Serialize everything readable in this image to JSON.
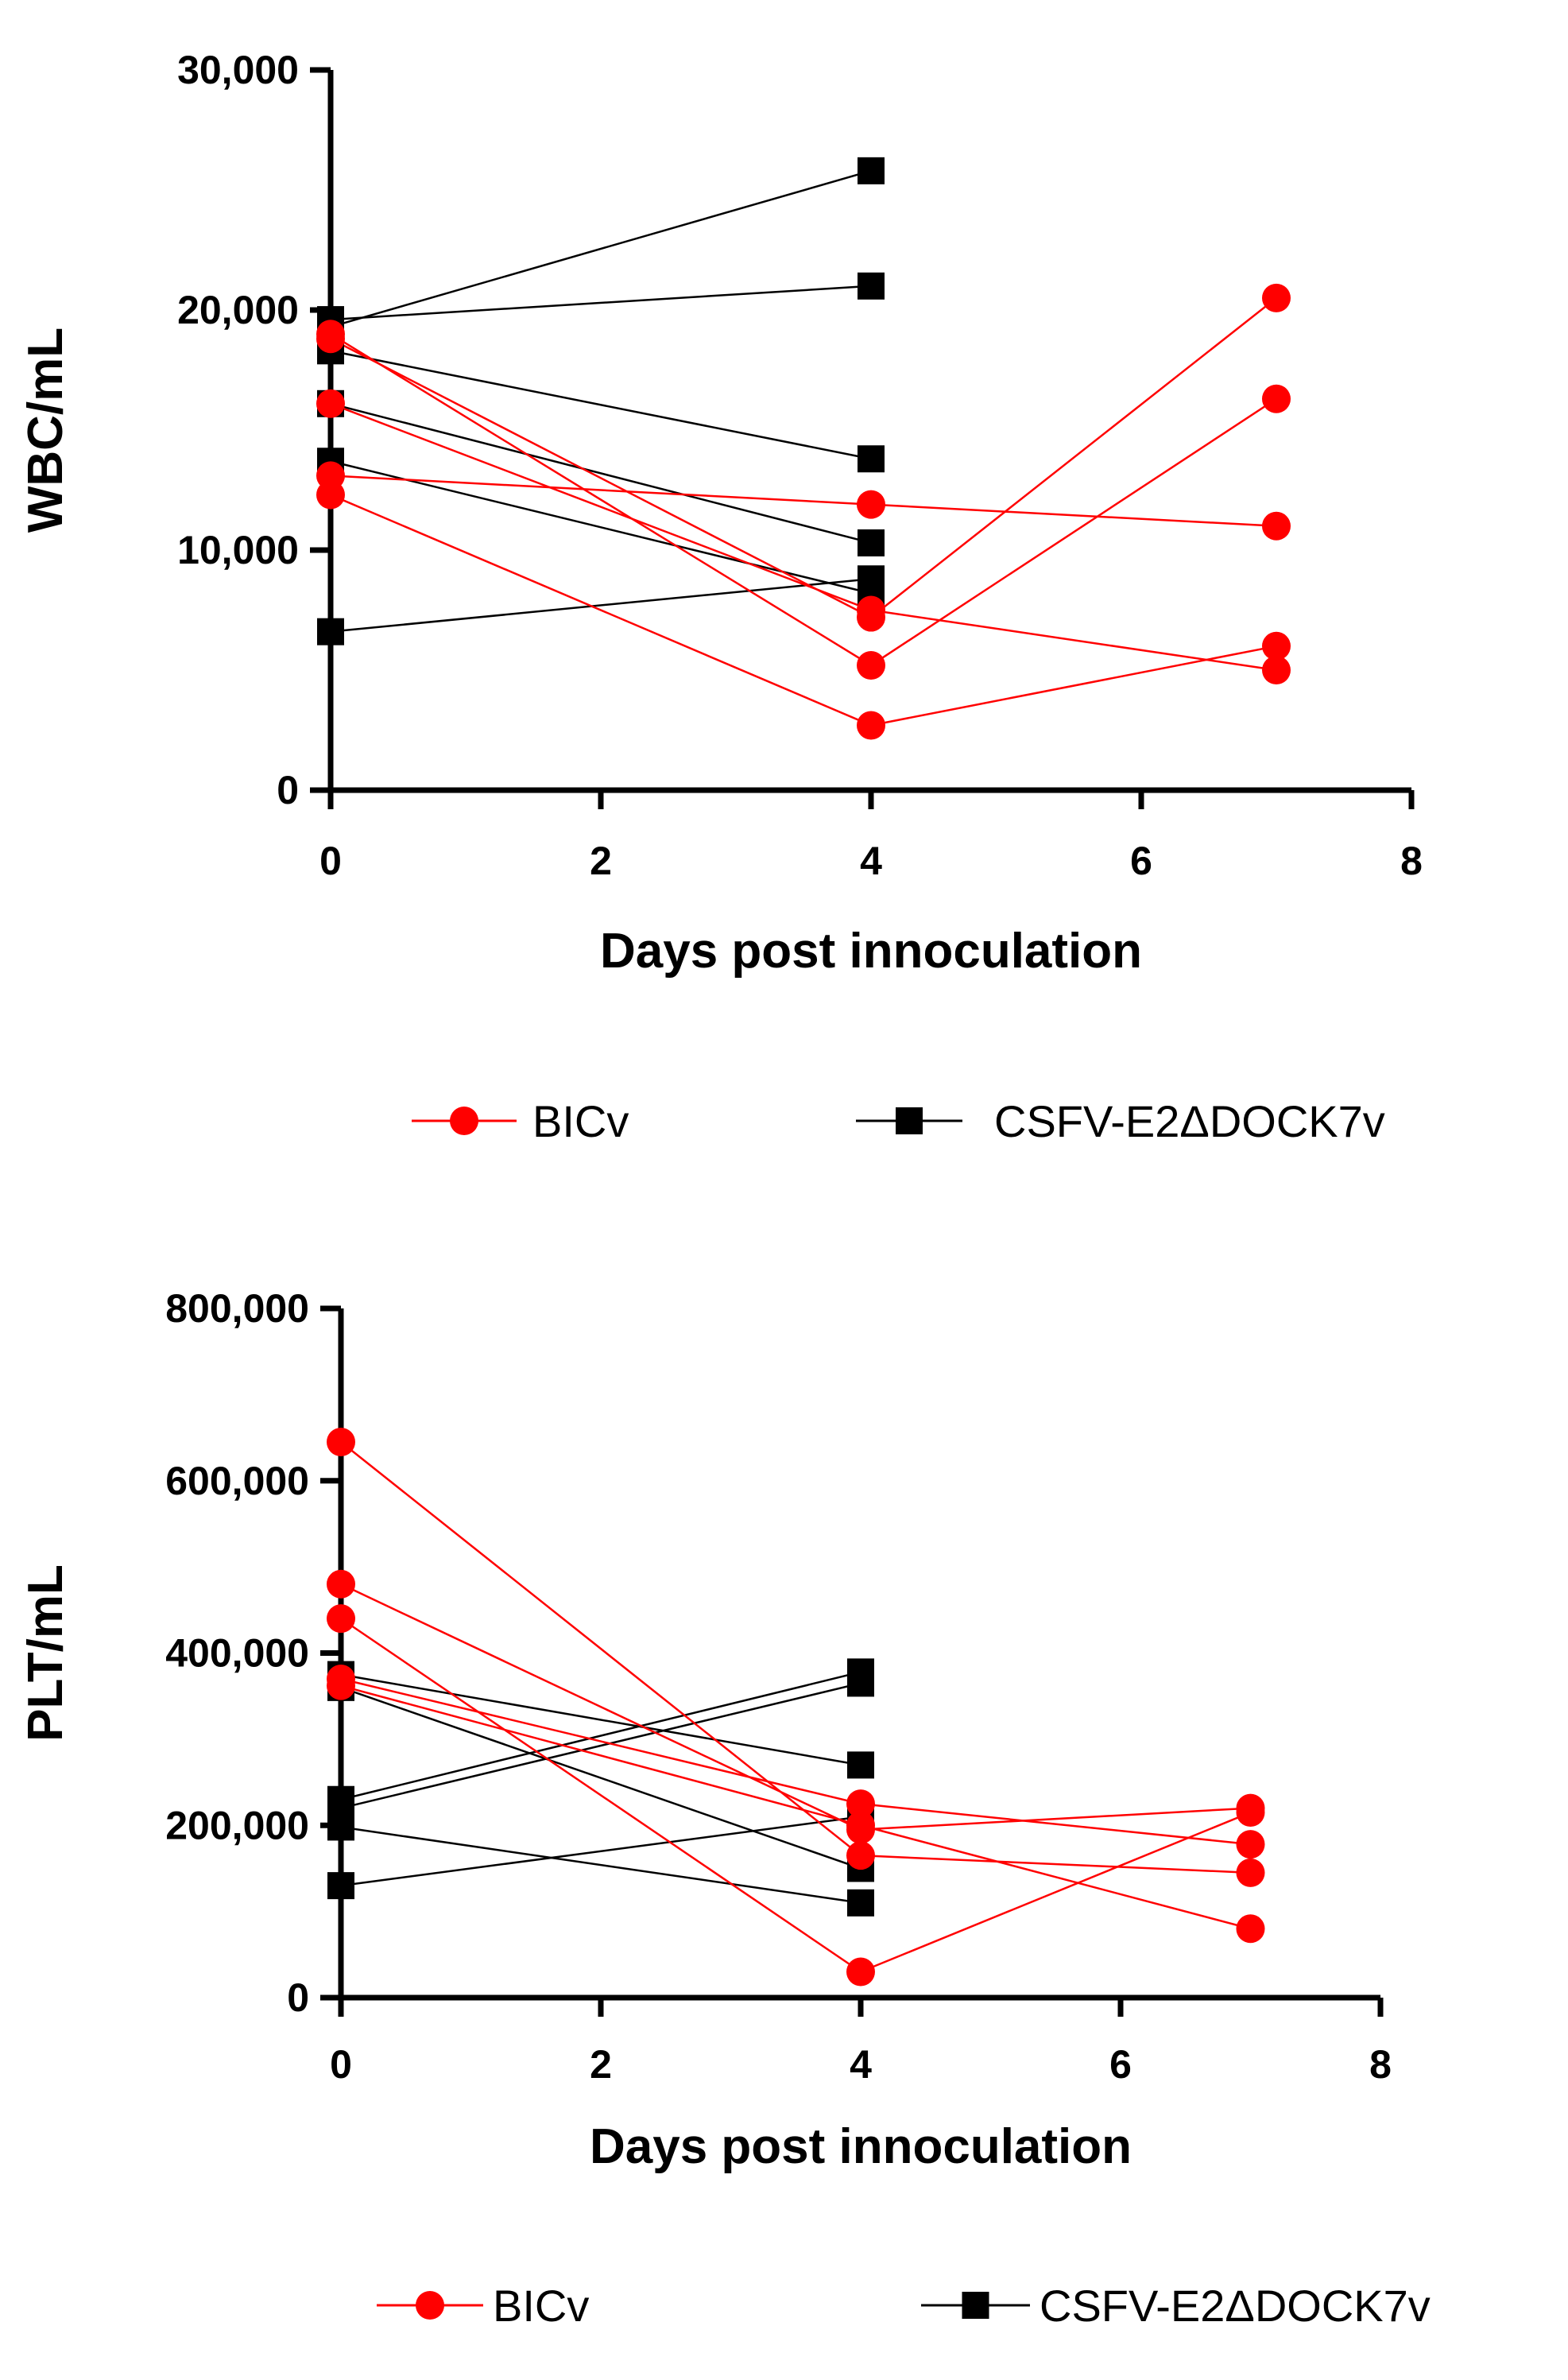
{
  "colors": {
    "bicv": "#ff0000",
    "csfv": "#000000"
  },
  "chart_data": [
    {
      "type": "line",
      "title": "",
      "xlabel": "Days post innoculation",
      "ylabel": "WBC/mL",
      "xlim": [
        0,
        8
      ],
      "ylim": [
        0,
        30000
      ],
      "xticks": [
        "0",
        "2",
        "4",
        "6",
        "8"
      ],
      "yticks": [
        "0",
        "10,000",
        "20,000",
        "30,000"
      ],
      "legend": [
        {
          "name": "BICv",
          "marker": "circle",
          "color_key": "bicv"
        },
        {
          "name": "CSFV-E2ΔDOCK7v",
          "marker": "square",
          "color_key": "csfv"
        }
      ],
      "series": [
        {
          "group": "CSFV-E2ΔDOCK7v",
          "x": [
            0,
            4
          ],
          "y": [
            19300,
            25800
          ]
        },
        {
          "group": "CSFV-E2ΔDOCK7v",
          "x": [
            0,
            4
          ],
          "y": [
            19600,
            21000
          ]
        },
        {
          "group": "CSFV-E2ΔDOCK7v",
          "x": [
            0,
            4
          ],
          "y": [
            18300,
            13800
          ]
        },
        {
          "group": "CSFV-E2ΔDOCK7v",
          "x": [
            0,
            4
          ],
          "y": [
            16100,
            10300
          ]
        },
        {
          "group": "CSFV-E2ΔDOCK7v",
          "x": [
            0,
            4
          ],
          "y": [
            13700,
            8200
          ]
        },
        {
          "group": "CSFV-E2ΔDOCK7v",
          "x": [
            0,
            4
          ],
          "y": [
            6600,
            8800
          ]
        },
        {
          "group": "BICv",
          "x": [
            0,
            4,
            7
          ],
          "y": [
            19000,
            5200,
            16300
          ]
        },
        {
          "group": "BICv",
          "x": [
            0,
            4,
            7
          ],
          "y": [
            18800,
            7200,
            20500
          ]
        },
        {
          "group": "BICv",
          "x": [
            0,
            4,
            7
          ],
          "y": [
            16100,
            7500,
            5000
          ]
        },
        {
          "group": "BICv",
          "x": [
            0,
            4,
            7
          ],
          "y": [
            13100,
            11900,
            11000
          ]
        },
        {
          "group": "BICv",
          "x": [
            0,
            4,
            7
          ],
          "y": [
            12300,
            2700,
            6000
          ]
        }
      ]
    },
    {
      "type": "line",
      "title": "",
      "xlabel": "Days post innoculation",
      "ylabel": "PLT/mL",
      "xlim": [
        0,
        8
      ],
      "ylim": [
        0,
        800000
      ],
      "xticks": [
        "0",
        "2",
        "4",
        "6",
        "8"
      ],
      "yticks": [
        "0",
        "200,000",
        "400,000",
        "600,000",
        "800,000"
      ],
      "legend": [
        {
          "name": "BICv",
          "marker": "circle",
          "color_key": "bicv"
        },
        {
          "name": "CSFV-E2ΔDOCK7v",
          "marker": "square",
          "color_key": "csfv"
        }
      ],
      "series": [
        {
          "group": "CSFV-E2ΔDOCK7v",
          "x": [
            0,
            4
          ],
          "y": [
            375000,
            270000
          ]
        },
        {
          "group": "CSFV-E2ΔDOCK7v",
          "x": [
            0,
            4
          ],
          "y": [
            360000,
            150000
          ]
        },
        {
          "group": "CSFV-E2ΔDOCK7v",
          "x": [
            0,
            4
          ],
          "y": [
            230000,
            378000
          ]
        },
        {
          "group": "CSFV-E2ΔDOCK7v",
          "x": [
            0,
            4
          ],
          "y": [
            220000,
            365000
          ]
        },
        {
          "group": "CSFV-E2ΔDOCK7v",
          "x": [
            0,
            4
          ],
          "y": [
            198000,
            110000
          ]
        },
        {
          "group": "CSFV-E2ΔDOCK7v",
          "x": [
            0,
            4
          ],
          "y": [
            130000,
            210000
          ]
        },
        {
          "group": "BICv",
          "x": [
            0,
            4,
            7
          ],
          "y": [
            645000,
            165000,
            145000
          ]
        },
        {
          "group": "BICv",
          "x": [
            0,
            4,
            7
          ],
          "y": [
            480000,
            195000,
            220000
          ]
        },
        {
          "group": "BICv",
          "x": [
            0,
            4,
            7
          ],
          "y": [
            440000,
            30000,
            215000
          ]
        },
        {
          "group": "BICv",
          "x": [
            0,
            4,
            7
          ],
          "y": [
            370000,
            225000,
            178000
          ]
        },
        {
          "group": "BICv",
          "x": [
            0,
            4,
            7
          ],
          "y": [
            362000,
            200000,
            80000
          ]
        }
      ]
    }
  ]
}
